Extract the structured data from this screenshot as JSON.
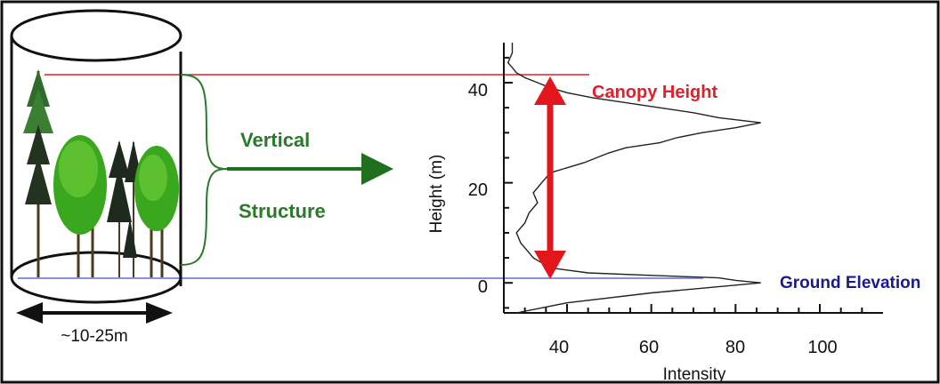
{
  "diagram": {
    "width_label": "~10-25m",
    "arrow_label_line1": "Vertical",
    "arrow_label_line2": "Structure",
    "canopy_label": "Canopy Height",
    "ground_label": "Ground Elevation",
    "colors": {
      "canopy_line": "#e0202a",
      "ground_line": "#8a8fe0",
      "green_arrow": "#1f6f1f",
      "red_arrow": "#e3161c",
      "ground_text": "#1a1a8c",
      "tree_green": "#3aa81f",
      "tree_dark": "#1f2a1f"
    }
  },
  "chart_data": {
    "type": "line",
    "xlabel": "Intensity",
    "ylabel": "Height (m)",
    "x_ticks": [
      "40",
      "60",
      "80",
      "100"
    ],
    "y_ticks": [
      "0",
      "20",
      "40"
    ],
    "xlim": [
      25,
      115
    ],
    "ylim": [
      -6,
      48
    ],
    "canopy_height": 43,
    "ground_elevation": 1,
    "profile": {
      "height": [
        -6,
        -4,
        -2,
        0,
        0.5,
        1,
        1.5,
        2,
        3,
        4,
        5,
        6,
        8,
        10,
        12,
        14,
        16,
        18,
        20,
        22,
        24,
        26,
        27,
        28,
        29,
        30,
        31,
        32,
        33,
        34,
        35,
        36,
        37,
        38,
        39,
        40,
        41,
        42,
        43,
        44,
        46,
        48
      ],
      "intensity": [
        28,
        40,
        60,
        86,
        80,
        76,
        60,
        45,
        36,
        34,
        32,
        31,
        29,
        28,
        30,
        31,
        33,
        32,
        34,
        36,
        44,
        50,
        54,
        62,
        66,
        72,
        80,
        86,
        76,
        70,
        62,
        54,
        46,
        40,
        36,
        33,
        30,
        28,
        27,
        26,
        27,
        27
      ]
    }
  }
}
